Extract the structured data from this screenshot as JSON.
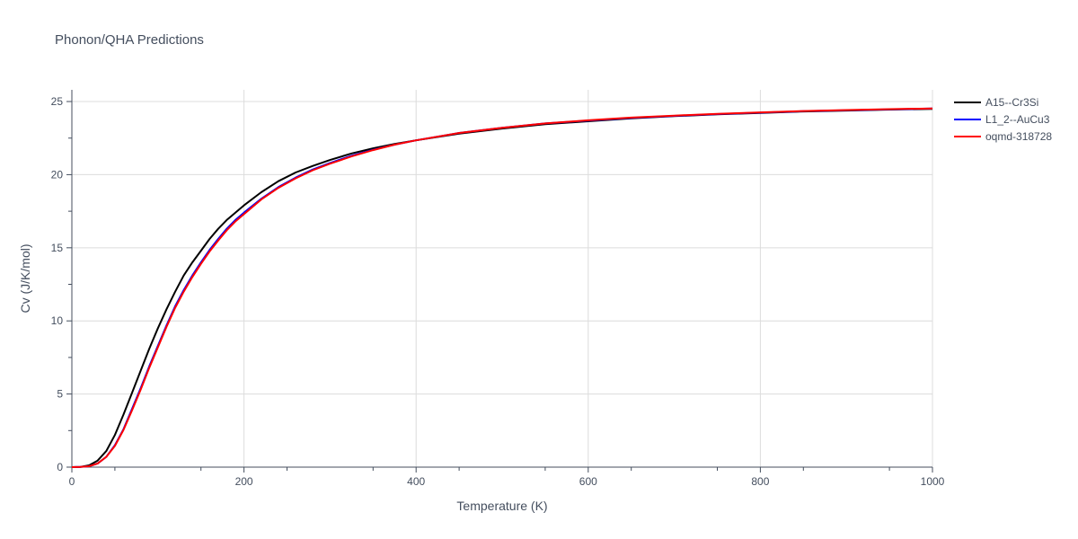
{
  "chart_data": {
    "type": "line",
    "title": "Phonon/QHA Predictions",
    "xlabel": "Temperature (K)",
    "ylabel": "Cv (J/K/mol)",
    "xlim": [
      0,
      1000
    ],
    "ylim": [
      0,
      25.8
    ],
    "xticks": [
      0,
      200,
      400,
      600,
      800,
      1000
    ],
    "yticks": [
      0,
      5,
      10,
      15,
      20,
      25
    ],
    "grid": true,
    "legend_position": "top-right, outside",
    "series": [
      {
        "name": "A15--Cr3Si",
        "color": "#000000",
        "x": [
          0,
          10,
          20,
          30,
          40,
          50,
          60,
          70,
          80,
          90,
          100,
          110,
          120,
          130,
          140,
          150,
          160,
          170,
          180,
          190,
          200,
          220,
          240,
          260,
          280,
          300,
          325,
          350,
          375,
          400,
          450,
          500,
          550,
          600,
          650,
          700,
          750,
          800,
          850,
          900,
          950,
          1000
        ],
        "y": [
          0,
          0.02,
          0.12,
          0.45,
          1.1,
          2.2,
          3.6,
          5.1,
          6.6,
          8.1,
          9.5,
          10.8,
          12.0,
          13.1,
          14.0,
          14.8,
          15.6,
          16.3,
          16.9,
          17.4,
          17.9,
          18.8,
          19.55,
          20.15,
          20.6,
          21.0,
          21.45,
          21.8,
          22.1,
          22.35,
          22.8,
          23.15,
          23.45,
          23.65,
          23.85,
          24.0,
          24.12,
          24.22,
          24.32,
          24.38,
          24.45,
          24.5
        ]
      },
      {
        "name": "L1_2--AuCu3",
        "color": "#0000ff",
        "x": [
          0,
          10,
          20,
          30,
          40,
          50,
          60,
          70,
          80,
          90,
          100,
          110,
          120,
          130,
          140,
          150,
          160,
          170,
          180,
          190,
          200,
          220,
          240,
          260,
          280,
          300,
          325,
          350,
          375,
          400,
          450,
          500,
          550,
          600,
          650,
          700,
          750,
          800,
          850,
          900,
          950,
          1000
        ],
        "y": [
          0,
          0.01,
          0.06,
          0.25,
          0.7,
          1.5,
          2.6,
          4.0,
          5.4,
          6.9,
          8.3,
          9.7,
          11.0,
          12.1,
          13.1,
          14.0,
          14.85,
          15.6,
          16.3,
          16.9,
          17.4,
          18.35,
          19.15,
          19.8,
          20.35,
          20.8,
          21.3,
          21.7,
          22.05,
          22.35,
          22.85,
          23.2,
          23.5,
          23.7,
          23.88,
          24.02,
          24.14,
          24.24,
          24.34,
          24.4,
          24.46,
          24.52
        ]
      },
      {
        "name": "oqmd-318728",
        "color": "#ff0000",
        "x": [
          0,
          10,
          20,
          30,
          40,
          50,
          60,
          70,
          80,
          90,
          100,
          110,
          120,
          130,
          140,
          150,
          160,
          170,
          180,
          190,
          200,
          220,
          240,
          260,
          280,
          300,
          325,
          350,
          375,
          400,
          450,
          500,
          550,
          600,
          650,
          700,
          750,
          800,
          850,
          900,
          950,
          1000
        ],
        "y": [
          0,
          0.01,
          0.06,
          0.25,
          0.7,
          1.45,
          2.55,
          3.9,
          5.3,
          6.8,
          8.2,
          9.6,
          10.9,
          12.0,
          13.0,
          13.9,
          14.75,
          15.5,
          16.2,
          16.8,
          17.3,
          18.3,
          19.1,
          19.75,
          20.3,
          20.75,
          21.25,
          21.68,
          22.05,
          22.35,
          22.85,
          23.2,
          23.5,
          23.72,
          23.9,
          24.04,
          24.16,
          24.26,
          24.35,
          24.42,
          24.48,
          24.53
        ]
      }
    ]
  }
}
